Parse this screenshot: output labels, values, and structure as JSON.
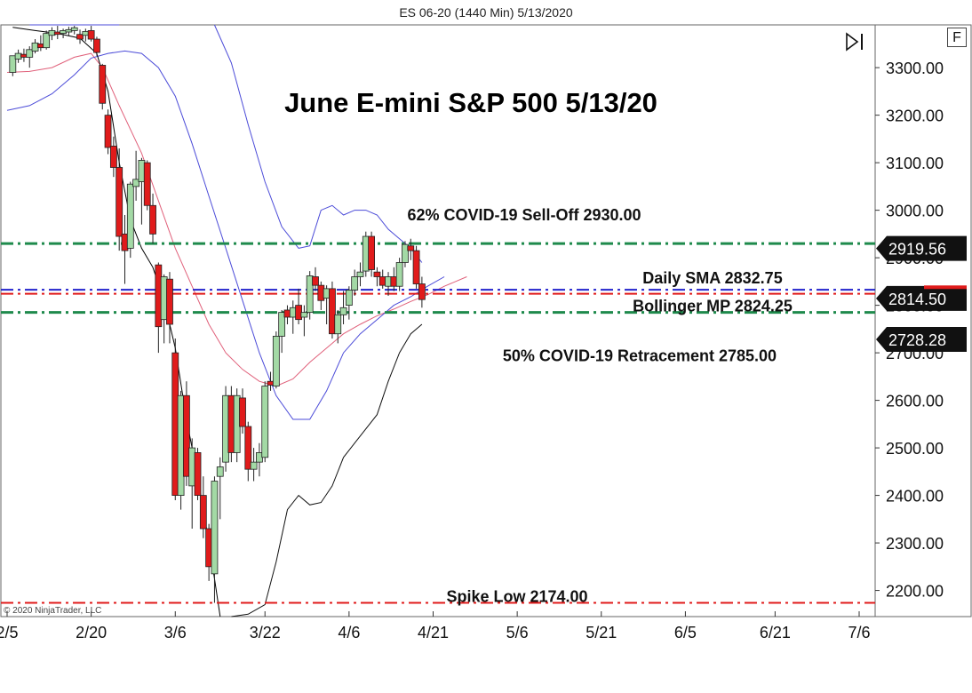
{
  "window_title": "ES 06-20 (1440 Min)  5/13/2020",
  "copyright": "© 2020 NinjaTrader, LLC",
  "buttons": {
    "f_label": "F"
  },
  "icons": {
    "scroll_end": "skip-to-end-icon"
  },
  "colors": {
    "bull_candle": "#a3d9a5",
    "bear_candle": "#e01b1b",
    "sma_line": "#000000",
    "bb_outer": "#4b4bd8",
    "bb_middle": "#e0607a",
    "level_green": "#1f8a4c",
    "level_red": "#e01b1b",
    "level_blue": "#2222cc"
  },
  "chart_data": {
    "type": "candlestick",
    "title": "June E-mini S&P 500 5/13/20",
    "ylim": [
      2145,
      3390
    ],
    "y_ticks": [
      "3300.00",
      "3200.00",
      "3100.00",
      "3000.00",
      "2900.00",
      "2800.00",
      "2700.00",
      "2600.00",
      "2500.00",
      "2400.00",
      "2300.00",
      "2200.00"
    ],
    "y_tick_values": [
      3300,
      3200,
      3100,
      3000,
      2900,
      2800,
      2700,
      2600,
      2500,
      2400,
      2300,
      2200
    ],
    "x_ticks": [
      "2/5",
      "2/20",
      "3/6",
      "3/22",
      "4/6",
      "4/21",
      "5/6",
      "5/21",
      "6/5",
      "6/21",
      "7/6"
    ],
    "x_tick_days": [
      36,
      51,
      66,
      82,
      97,
      112,
      127,
      142,
      157,
      173,
      188
    ],
    "x_range_days": [
      36,
      188
    ],
    "price_tags": [
      {
        "label": "2919.56",
        "value": 2919.56
      },
      {
        "label": "2814.50",
        "value": 2814.5
      },
      {
        "label": "2728.28",
        "value": 2728.28
      }
    ],
    "levels": [
      {
        "name": "62% COVID-19 Sell-Off",
        "value": 2930.0,
        "color": "#1f8a4c",
        "style": "dashdot"
      },
      {
        "name": "Daily SMA",
        "value": 2832.75,
        "color": "#2222cc",
        "style": "dashdot"
      },
      {
        "name": "Bollinger MP",
        "value": 2824.25,
        "color": "#e01b1b",
        "style": "dashdot"
      },
      {
        "name": "50% COVID-19 Retracement",
        "value": 2785.0,
        "color": "#1f8a4c",
        "style": "dashdot"
      },
      {
        "name": "Spike Low",
        "value": 2174.0,
        "color": "#e01b1b",
        "style": "dashdot"
      }
    ],
    "annotations": [
      {
        "text": "62% COVID-19 Sell-Off 2930.00",
        "value": 2990
      },
      {
        "text": "Daily SMA 2832.75",
        "value": 2857
      },
      {
        "text": "Bollinger MP 2824.25",
        "value": 2798
      },
      {
        "text": "50% COVID-19 Retracement 2785.00",
        "value": 2694
      },
      {
        "text": "Spike Low 2174.00",
        "value": 2187
      }
    ],
    "candles": [
      {
        "d": 37,
        "o": 3290,
        "h": 3318,
        "l": 3282,
        "c": 3325
      },
      {
        "d": 38,
        "o": 3318,
        "h": 3338,
        "l": 3310,
        "c": 3330
      },
      {
        "d": 39,
        "o": 3328,
        "h": 3340,
        "l": 3312,
        "c": 3322
      },
      {
        "d": 40,
        "o": 3322,
        "h": 3345,
        "l": 3300,
        "c": 3338
      },
      {
        "d": 41,
        "o": 3335,
        "h": 3360,
        "l": 3330,
        "c": 3352
      },
      {
        "d": 42,
        "o": 3350,
        "h": 3368,
        "l": 3335,
        "c": 3342
      },
      {
        "d": 43,
        "o": 3342,
        "h": 3378,
        "l": 3338,
        "c": 3372
      },
      {
        "d": 44,
        "o": 3368,
        "h": 3385,
        "l": 3358,
        "c": 3378
      },
      {
        "d": 45,
        "o": 3375,
        "h": 3388,
        "l": 3360,
        "c": 3370
      },
      {
        "d": 46,
        "o": 3372,
        "h": 3382,
        "l": 3362,
        "c": 3378
      },
      {
        "d": 47,
        "o": 3375,
        "h": 3386,
        "l": 3366,
        "c": 3380
      },
      {
        "d": 48,
        "o": 3378,
        "h": 3388,
        "l": 3370,
        "c": 3384
      },
      {
        "d": 49,
        "o": 3370,
        "h": 3380,
        "l": 3350,
        "c": 3360
      },
      {
        "d": 50,
        "o": 3368,
        "h": 3382,
        "l": 3355,
        "c": 3376
      },
      {
        "d": 51,
        "o": 3378,
        "h": 3388,
        "l": 3355,
        "c": 3360
      },
      {
        "d": 52,
        "o": 3360,
        "h": 3365,
        "l": 3325,
        "c": 3332
      },
      {
        "d": 53,
        "o": 3305,
        "h": 3308,
        "l": 3212,
        "c": 3225
      },
      {
        "d": 54,
        "o": 3200,
        "h": 3212,
        "l": 3118,
        "c": 3132
      },
      {
        "d": 55,
        "o": 3135,
        "h": 3155,
        "l": 3070,
        "c": 3090
      },
      {
        "d": 56,
        "o": 3090,
        "h": 3130,
        "l": 2915,
        "c": 2945
      },
      {
        "d": 57,
        "o": 2950,
        "h": 2990,
        "l": 2845,
        "c": 2915
      },
      {
        "d": 58,
        "o": 2920,
        "h": 3060,
        "l": 2900,
        "c": 3055
      },
      {
        "d": 59,
        "o": 3050,
        "h": 3125,
        "l": 3020,
        "c": 3065
      },
      {
        "d": 60,
        "o": 3060,
        "h": 3110,
        "l": 2970,
        "c": 3105
      },
      {
        "d": 61,
        "o": 3100,
        "h": 3105,
        "l": 3000,
        "c": 3010
      },
      {
        "d": 62,
        "o": 3010,
        "h": 3035,
        "l": 2930,
        "c": 2950
      },
      {
        "d": 63,
        "o": 2885,
        "h": 2890,
        "l": 2700,
        "c": 2755
      },
      {
        "d": 64,
        "o": 2770,
        "h": 2865,
        "l": 2720,
        "c": 2860
      },
      {
        "d": 65,
        "o": 2855,
        "h": 2870,
        "l": 2720,
        "c": 2760
      },
      {
        "d": 66,
        "o": 2700,
        "h": 2730,
        "l": 2390,
        "c": 2400
      },
      {
        "d": 67,
        "o": 2400,
        "h": 2620,
        "l": 2370,
        "c": 2610
      },
      {
        "d": 68,
        "o": 2610,
        "h": 2640,
        "l": 2420,
        "c": 2440
      },
      {
        "d": 69,
        "o": 2420,
        "h": 2520,
        "l": 2330,
        "c": 2500
      },
      {
        "d": 70,
        "o": 2490,
        "h": 2500,
        "l": 2390,
        "c": 2400
      },
      {
        "d": 71,
        "o": 2400,
        "h": 2440,
        "l": 2310,
        "c": 2330
      },
      {
        "d": 72,
        "o": 2330,
        "h": 2340,
        "l": 2220,
        "c": 2250
      },
      {
        "d": 73,
        "o": 2235,
        "h": 2440,
        "l": 2174,
        "c": 2430
      },
      {
        "d": 74,
        "o": 2440,
        "h": 2480,
        "l": 2350,
        "c": 2460
      },
      {
        "d": 75,
        "o": 2470,
        "h": 2630,
        "l": 2450,
        "c": 2610
      },
      {
        "d": 76,
        "o": 2610,
        "h": 2630,
        "l": 2470,
        "c": 2490
      },
      {
        "d": 77,
        "o": 2490,
        "h": 2625,
        "l": 2470,
        "c": 2610
      },
      {
        "d": 78,
        "o": 2605,
        "h": 2625,
        "l": 2530,
        "c": 2545
      },
      {
        "d": 79,
        "o": 2545,
        "h": 2555,
        "l": 2430,
        "c": 2455
      },
      {
        "d": 80,
        "o": 2455,
        "h": 2500,
        "l": 2430,
        "c": 2470
      },
      {
        "d": 81,
        "o": 2470,
        "h": 2510,
        "l": 2440,
        "c": 2490
      },
      {
        "d": 82,
        "o": 2480,
        "h": 2640,
        "l": 2470,
        "c": 2630
      },
      {
        "d": 83,
        "o": 2640,
        "h": 2660,
        "l": 2620,
        "c": 2632
      },
      {
        "d": 84,
        "o": 2630,
        "h": 2745,
        "l": 2625,
        "c": 2735
      },
      {
        "d": 85,
        "o": 2735,
        "h": 2790,
        "l": 2700,
        "c": 2785
      },
      {
        "d": 86,
        "o": 2790,
        "h": 2800,
        "l": 2760,
        "c": 2775
      },
      {
        "d": 87,
        "o": 2775,
        "h": 2810,
        "l": 2740,
        "c": 2795
      },
      {
        "d": 88,
        "o": 2800,
        "h": 2835,
        "l": 2760,
        "c": 2770
      },
      {
        "d": 89,
        "o": 2775,
        "h": 2800,
        "l": 2735,
        "c": 2785
      },
      {
        "d": 90,
        "o": 2785,
        "h": 2872,
        "l": 2770,
        "c": 2862
      },
      {
        "d": 91,
        "o": 2860,
        "h": 2880,
        "l": 2830,
        "c": 2842
      },
      {
        "d": 92,
        "o": 2842,
        "h": 2850,
        "l": 2790,
        "c": 2810
      },
      {
        "d": 93,
        "o": 2815,
        "h": 2842,
        "l": 2760,
        "c": 2835
      },
      {
        "d": 94,
        "o": 2835,
        "h": 2850,
        "l": 2730,
        "c": 2740
      },
      {
        "d": 95,
        "o": 2740,
        "h": 2790,
        "l": 2720,
        "c": 2780
      },
      {
        "d": 96,
        "o": 2780,
        "h": 2830,
        "l": 2760,
        "c": 2795
      },
      {
        "d": 97,
        "o": 2800,
        "h": 2840,
        "l": 2770,
        "c": 2832
      },
      {
        "d": 98,
        "o": 2832,
        "h": 2875,
        "l": 2820,
        "c": 2860
      },
      {
        "d": 99,
        "o": 2860,
        "h": 2890,
        "l": 2840,
        "c": 2870
      },
      {
        "d": 100,
        "o": 2872,
        "h": 2955,
        "l": 2860,
        "c": 2945
      },
      {
        "d": 101,
        "o": 2945,
        "h": 2955,
        "l": 2860,
        "c": 2875
      },
      {
        "d": 102,
        "o": 2870,
        "h": 2880,
        "l": 2840,
        "c": 2860
      },
      {
        "d": 103,
        "o": 2860,
        "h": 2875,
        "l": 2835,
        "c": 2842
      },
      {
        "d": 104,
        "o": 2840,
        "h": 2870,
        "l": 2820,
        "c": 2860
      },
      {
        "d": 105,
        "o": 2860,
        "h": 2880,
        "l": 2830,
        "c": 2840
      },
      {
        "d": 106,
        "o": 2840,
        "h": 2900,
        "l": 2830,
        "c": 2890
      },
      {
        "d": 107,
        "o": 2890,
        "h": 2935,
        "l": 2880,
        "c": 2928
      },
      {
        "d": 108,
        "o": 2925,
        "h": 2940,
        "l": 2895,
        "c": 2915
      },
      {
        "d": 109,
        "o": 2915,
        "h": 2925,
        "l": 2835,
        "c": 2845
      },
      {
        "d": 110,
        "o": 2845,
        "h": 2860,
        "l": 2795,
        "c": 2812
      }
    ],
    "sma": [
      [
        37,
        3385
      ],
      [
        41,
        3378
      ],
      [
        45,
        3372
      ],
      [
        49,
        3362
      ],
      [
        52,
        3330
      ],
      [
        54,
        3250
      ],
      [
        56,
        3100
      ],
      [
        58,
        2980
      ],
      [
        60,
        2920
      ],
      [
        62,
        2880
      ],
      [
        64,
        2810
      ],
      [
        66,
        2710
      ],
      [
        68,
        2560
      ],
      [
        70,
        2440
      ],
      [
        72,
        2300
      ],
      [
        73,
        2225
      ],
      [
        74,
        2140
      ]
    ],
    "bb_upper": [
      [
        40,
        3400
      ],
      [
        44,
        3410
      ],
      [
        48,
        3420
      ],
      [
        52,
        3410
      ],
      [
        54,
        3420
      ],
      [
        56,
        3430
      ]
    ],
    "bb_middle": [
      [
        36,
        3290
      ],
      [
        40,
        3292
      ],
      [
        44,
        3300
      ],
      [
        48,
        3322
      ],
      [
        51,
        3330
      ],
      [
        53,
        3300
      ],
      [
        56,
        3220
      ],
      [
        60,
        3120
      ],
      [
        63,
        3020
      ],
      [
        66,
        2920
      ],
      [
        69,
        2840
      ],
      [
        72,
        2760
      ],
      [
        75,
        2700
      ],
      [
        78,
        2665
      ],
      [
        81,
        2640
      ],
      [
        84,
        2630
      ],
      [
        87,
        2645
      ],
      [
        90,
        2680
      ],
      [
        93,
        2710
      ],
      [
        96,
        2740
      ],
      [
        99,
        2760
      ],
      [
        102,
        2778
      ],
      [
        105,
        2792
      ],
      [
        108,
        2808
      ],
      [
        111,
        2822
      ],
      [
        114,
        2840
      ],
      [
        118,
        2860
      ]
    ],
    "bb_upper_main": [
      [
        36,
        3210
      ],
      [
        40,
        3220
      ],
      [
        44,
        3245
      ],
      [
        48,
        3285
      ],
      [
        51,
        3320
      ],
      [
        54,
        3330
      ],
      [
        57,
        3335
      ],
      [
        60,
        3330
      ],
      [
        63,
        3300
      ],
      [
        66,
        3240
      ],
      [
        69,
        3140
      ],
      [
        72,
        3030
      ],
      [
        75,
        2920
      ],
      [
        78,
        2810
      ],
      [
        81,
        2700
      ],
      [
        84,
        2610
      ],
      [
        87,
        2560
      ],
      [
        90,
        2560
      ],
      [
        93,
        2620
      ],
      [
        96,
        2700
      ],
      [
        99,
        2740
      ],
      [
        102,
        2770
      ],
      [
        105,
        2800
      ],
      [
        108,
        2818
      ],
      [
        111,
        2840
      ],
      [
        114,
        2860
      ]
    ],
    "bb_lower_main": [
      [
        73,
        3445
      ],
      [
        76,
        3310
      ],
      [
        79,
        3180
      ],
      [
        82,
        3060
      ],
      [
        85,
        2965
      ],
      [
        88,
        2920
      ],
      [
        90,
        2925
      ],
      [
        92,
        3000
      ],
      [
        94,
        3010
      ],
      [
        96,
        2990
      ],
      [
        98,
        3000
      ],
      [
        100,
        3000
      ],
      [
        102,
        2990
      ],
      [
        104,
        2960
      ],
      [
        106,
        2940
      ],
      [
        108,
        2920
      ],
      [
        110,
        2890
      ]
    ],
    "bb_bottom": [
      [
        76,
        2130
      ],
      [
        79,
        2150
      ],
      [
        82,
        2170
      ],
      [
        84,
        2260
      ],
      [
        86,
        2370
      ],
      [
        88,
        2400
      ],
      [
        90,
        2380
      ],
      [
        92,
        2385
      ],
      [
        94,
        2420
      ],
      [
        96,
        2480
      ],
      [
        98,
        2510
      ],
      [
        100,
        2540
      ],
      [
        102,
        2570
      ],
      [
        104,
        2640
      ],
      [
        106,
        2700
      ],
      [
        108,
        2740
      ],
      [
        110,
        2760
      ]
    ]
  }
}
